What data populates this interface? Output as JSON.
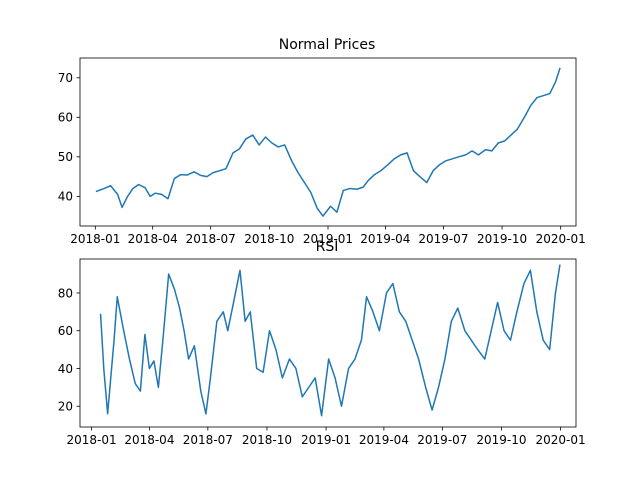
{
  "chart_data": [
    {
      "type": "line",
      "title": "Normal Prices",
      "xlabel": "",
      "ylabel": "",
      "xlim": [
        "2017-12-08",
        "2020-01-25"
      ],
      "ylim": [
        32.5,
        75
      ],
      "grid": false,
      "line_color": "#1f77b4",
      "x_ticks": [
        "2018-01",
        "2018-04",
        "2018-07",
        "2018-10",
        "2019-01",
        "2019-04",
        "2019-07",
        "2019-10",
        "2020-01"
      ],
      "y_ticks": [
        40,
        50,
        60,
        70
      ],
      "series": [
        {
          "x": [
            "2018-01-02",
            "2018-01-15",
            "2018-01-25",
            "2018-02-05",
            "2018-02-12",
            "2018-02-20",
            "2018-03-01",
            "2018-03-10",
            "2018-03-20",
            "2018-03-28",
            "2018-04-05",
            "2018-04-15",
            "2018-04-25",
            "2018-05-05",
            "2018-05-15",
            "2018-05-25",
            "2018-06-05",
            "2018-06-15",
            "2018-06-25",
            "2018-07-05",
            "2018-07-15",
            "2018-07-25",
            "2018-08-05",
            "2018-08-15",
            "2018-08-25",
            "2018-09-05",
            "2018-09-15",
            "2018-09-25",
            "2018-10-05",
            "2018-10-15",
            "2018-10-25",
            "2018-11-05",
            "2018-11-15",
            "2018-11-25",
            "2018-12-05",
            "2018-12-15",
            "2018-12-24",
            "2019-01-05",
            "2019-01-15",
            "2019-01-25",
            "2019-02-05",
            "2019-02-15",
            "2019-02-25",
            "2019-03-05",
            "2019-03-15",
            "2019-03-25",
            "2019-04-05",
            "2019-04-15",
            "2019-04-25",
            "2019-05-05",
            "2019-05-15",
            "2019-05-25",
            "2019-06-05",
            "2019-06-15",
            "2019-06-25",
            "2019-07-05",
            "2019-07-15",
            "2019-07-25",
            "2019-08-05",
            "2019-08-15",
            "2019-08-25",
            "2019-09-05",
            "2019-09-15",
            "2019-09-25",
            "2019-10-05",
            "2019-10-15",
            "2019-10-25",
            "2019-11-05",
            "2019-11-15",
            "2019-11-25",
            "2019-12-05",
            "2019-12-15",
            "2019-12-24",
            "2019-12-31"
          ],
          "y": [
            41.2,
            42.0,
            42.7,
            40.5,
            37.2,
            39.8,
            42.0,
            43.0,
            42.2,
            40.0,
            40.8,
            40.5,
            39.4,
            44.5,
            45.5,
            45.4,
            46.2,
            45.3,
            45.0,
            46.0,
            46.5,
            47.0,
            51.0,
            52.0,
            54.5,
            55.5,
            53.0,
            55.0,
            53.5,
            52.5,
            53.0,
            49.0,
            46.0,
            43.5,
            41.0,
            37.0,
            35.0,
            37.5,
            36.0,
            41.5,
            42.0,
            41.8,
            42.3,
            44.0,
            45.5,
            46.5,
            48.0,
            49.5,
            50.5,
            51.0,
            46.5,
            45.0,
            43.5,
            46.5,
            48.0,
            49.0,
            49.5,
            50.0,
            50.5,
            51.5,
            50.5,
            51.8,
            51.5,
            53.5,
            54.0,
            55.5,
            57.0,
            60.0,
            63.0,
            65.0,
            65.5,
            66.0,
            69.0,
            72.5
          ]
        }
      ]
    },
    {
      "type": "line",
      "title": "RSI",
      "xlabel": "",
      "ylabel": "",
      "xlim": [
        "2017-12-14",
        "2020-01-25"
      ],
      "ylim": [
        9,
        98
      ],
      "grid": false,
      "line_color": "#1f77b4",
      "x_ticks": [
        "2018-01",
        "2018-04",
        "2018-07",
        "2018-10",
        "2019-01",
        "2019-04",
        "2019-07",
        "2019-10",
        "2020-01"
      ],
      "y_ticks": [
        20,
        40,
        60,
        80
      ],
      "series": [
        {
          "x": [
            "2018-01-15",
            "2018-01-20",
            "2018-01-26",
            "2018-02-05",
            "2018-02-10",
            "2018-02-20",
            "2018-03-01",
            "2018-03-10",
            "2018-03-18",
            "2018-03-25",
            "2018-04-01",
            "2018-04-08",
            "2018-04-15",
            "2018-04-22",
            "2018-05-01",
            "2018-05-10",
            "2018-05-18",
            "2018-05-25",
            "2018-06-01",
            "2018-06-10",
            "2018-06-20",
            "2018-06-28",
            "2018-07-05",
            "2018-07-15",
            "2018-07-25",
            "2018-08-01",
            "2018-08-10",
            "2018-08-20",
            "2018-08-28",
            "2018-09-05",
            "2018-09-15",
            "2018-09-25",
            "2018-10-05",
            "2018-10-15",
            "2018-10-25",
            "2018-11-05",
            "2018-11-15",
            "2018-11-25",
            "2018-12-05",
            "2018-12-15",
            "2018-12-25",
            "2019-01-05",
            "2019-01-15",
            "2019-01-25",
            "2019-02-05",
            "2019-02-15",
            "2019-02-25",
            "2019-03-05",
            "2019-03-15",
            "2019-03-25",
            "2019-04-05",
            "2019-04-15",
            "2019-04-25",
            "2019-05-05",
            "2019-05-15",
            "2019-05-25",
            "2019-06-05",
            "2019-06-15",
            "2019-06-25",
            "2019-07-05",
            "2019-07-15",
            "2019-07-25",
            "2019-08-05",
            "2019-08-15",
            "2019-08-25",
            "2019-09-05",
            "2019-09-15",
            "2019-09-25",
            "2019-10-05",
            "2019-10-15",
            "2019-10-25",
            "2019-11-05",
            "2019-11-15",
            "2019-11-25",
            "2019-12-05",
            "2019-12-15",
            "2019-12-24",
            "2019-12-31"
          ],
          "y": [
            69,
            40,
            16,
            55,
            78,
            60,
            45,
            32,
            28,
            58,
            40,
            44,
            30,
            55,
            90,
            82,
            72,
            60,
            45,
            52,
            28,
            16,
            35,
            65,
            70,
            60,
            75,
            92,
            65,
            70,
            40,
            38,
            60,
            50,
            35,
            45,
            40,
            25,
            30,
            35,
            15,
            45,
            35,
            20,
            40,
            45,
            55,
            78,
            70,
            60,
            80,
            85,
            70,
            65,
            55,
            45,
            30,
            18,
            30,
            45,
            65,
            72,
            60,
            55,
            50,
            45,
            60,
            75,
            60,
            55,
            70,
            85,
            92,
            70,
            55,
            50,
            80,
            95
          ]
        }
      ]
    }
  ]
}
